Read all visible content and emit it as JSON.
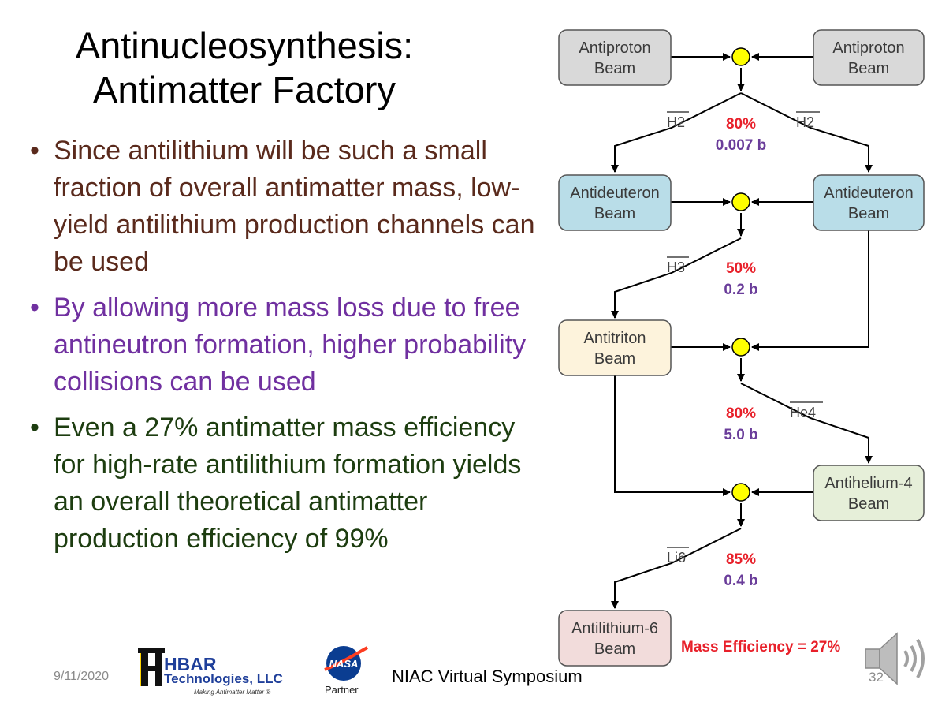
{
  "slide": {
    "title_line1": "Antinucleosynthesis:",
    "title_line2": "Antimatter Factory",
    "bullets": [
      "Since antilithium will be such a small fraction of overall antimatter mass, low-yield antilithium production channels can be used",
      "By allowing more mass loss due to free antineutron formation, higher probability collisions can be used",
      "Even a 27% antimatter mass efficiency for high-rate antilithium formation yields an overall theoretical antimatter production efficiency of 99%"
    ],
    "bullet_symbol": "•",
    "bullet_colors": [
      "#5a2a1c",
      "#7030a0",
      "#1d3d10"
    ]
  },
  "diagram": {
    "nodes": {
      "antiproton_left": [
        "Antiproton",
        "Beam"
      ],
      "antiproton_right": [
        "Antiproton",
        "Beam"
      ],
      "antideuteron_left": [
        "Antideuteron",
        "Beam"
      ],
      "antideuteron_right": [
        "Antideuteron",
        "Beam"
      ],
      "antitriton": [
        "Antitriton",
        "Beam"
      ],
      "antihelium4": [
        "Antihelium-4",
        "Beam"
      ],
      "antilithium6": [
        "Antilithium-6",
        "Beam"
      ]
    },
    "node_colors": {
      "antiproton": "#d9d9d9",
      "antideuteron": "#b9dde8",
      "antitriton": "#fdf3dc",
      "antihelium4": "#e6efd9",
      "antilithium6": "#f2dcdb",
      "junction": "#ffff00"
    },
    "reactions": [
      {
        "product": "H2",
        "percent": "80%",
        "cross_section": "0.007 b"
      },
      {
        "product": "H3",
        "percent": "50%",
        "cross_section": "0.2 b"
      },
      {
        "product": "He4",
        "percent": "80%",
        "cross_section": "5.0 b"
      },
      {
        "product": "Li6",
        "percent": "85%",
        "cross_section": "0.4 b"
      }
    ],
    "reaction_1_product_right": "H2",
    "mass_efficiency": "Mass Efficiency = 27%",
    "percent_color": "#e8202a",
    "cross_section_color": "#6a3d9a"
  },
  "footer": {
    "date": "9/11/2020",
    "hbar_name": "HBAR",
    "hbar_company": "Technologies, LLC",
    "hbar_tagline": "Making Antimatter Matter ®",
    "nasa_logo_text": "NASA",
    "nasa_partner": "Partner",
    "event": "NIAC Virtual Symposium",
    "page_number": "32"
  }
}
